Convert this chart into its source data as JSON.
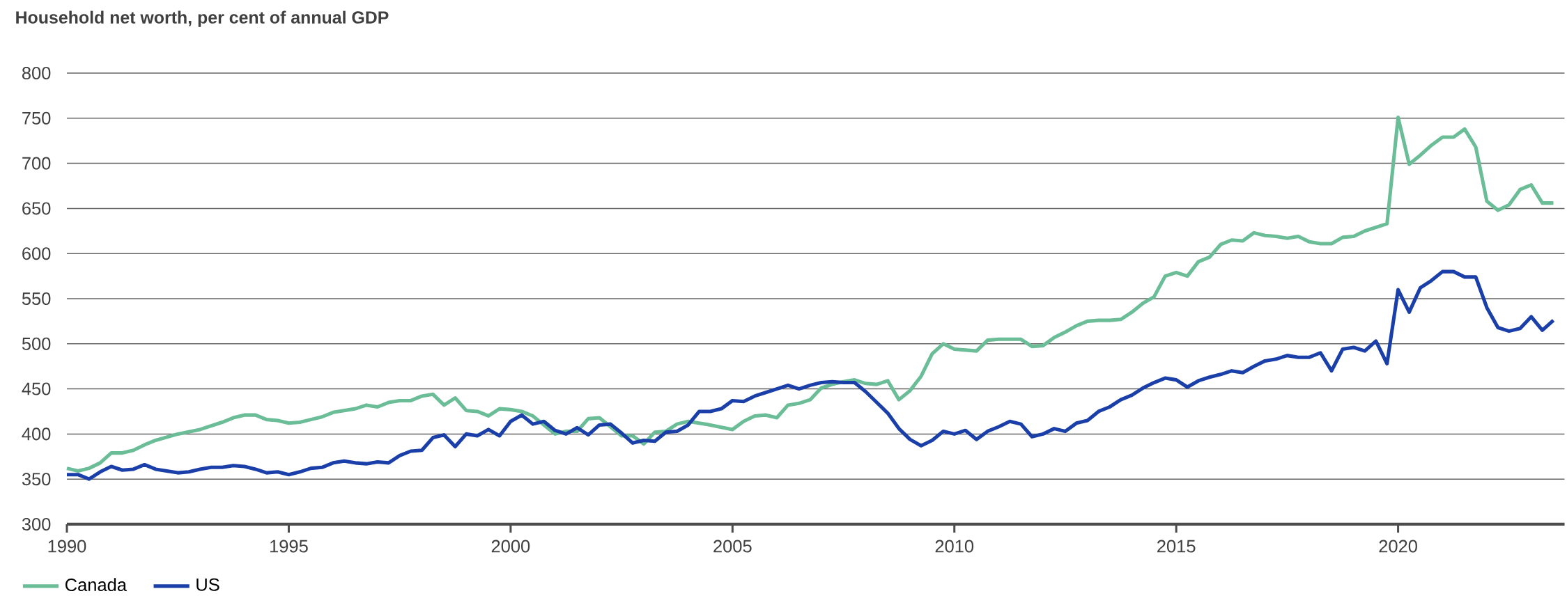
{
  "chart_data": {
    "type": "line",
    "title": "Household net worth, per cent of annual GDP",
    "xlim": [
      1990,
      2023.75
    ],
    "xticks": [
      1990,
      1995,
      2000,
      2005,
      2010,
      2015,
      2020
    ],
    "ylim": [
      300,
      800
    ],
    "yticks": [
      300,
      350,
      400,
      450,
      500,
      550,
      600,
      650,
      700,
      750,
      800
    ],
    "grid": "y",
    "legend": "bottom left",
    "series": [
      {
        "name": "Canada",
        "color": "#6bbd98",
        "x": [
          1990,
          1990.25,
          1990.5,
          1990.75,
          1991,
          1991.25,
          1991.5,
          1991.75,
          1992,
          1992.5,
          1993,
          1993.5,
          1993.75,
          1994,
          1994.25,
          1994.5,
          1994.75,
          1995,
          1995.25,
          1995.5,
          1995.75,
          1996,
          1996.5,
          1996.75,
          1997,
          1997.25,
          1997.5,
          1997.75,
          1998,
          1998.25,
          1998.5,
          1998.75,
          1999,
          1999.25,
          1999.5,
          1999.75,
          2000,
          2000.25,
          2000.5,
          2000.75,
          2001,
          2001.25,
          2001.5,
          2001.75,
          2002,
          2002.25,
          2002.5,
          2002.75,
          2003,
          2003.25,
          2003.5,
          2003.75,
          2004,
          2004.5,
          2005,
          2005.25,
          2005.5,
          2005.75,
          2006,
          2006.25,
          2006.5,
          2006.75,
          2007,
          2007.25,
          2007.5,
          2007.75,
          2008,
          2008.25,
          2008.5,
          2008.75,
          2009,
          2009.25,
          2009.5,
          2009.75,
          2010,
          2010.5,
          2010.75,
          2011,
          2011.25,
          2011.5,
          2011.75,
          2012,
          2012.25,
          2012.5,
          2012.75,
          2013,
          2013.25,
          2013.5,
          2013.75,
          2014,
          2014.25,
          2014.5,
          2014.75,
          2015,
          2015.25,
          2015.5,
          2015.75,
          2016,
          2016.25,
          2016.5,
          2016.75,
          2017,
          2017.25,
          2017.5,
          2017.75,
          2018,
          2018.25,
          2018.5,
          2018.75,
          2019,
          2019.25,
          2019.5,
          2019.75,
          2020,
          2020.25,
          2020.5,
          2020.75,
          2021,
          2021.25,
          2021.5,
          2021.75,
          2022,
          2022.25,
          2022.5,
          2022.75,
          2023,
          2023.25,
          2023.5
        ],
        "values": [
          362,
          359,
          362,
          368,
          379,
          379,
          382,
          388,
          393,
          400,
          405,
          413,
          418,
          421,
          421,
          416,
          415,
          412,
          413,
          416,
          419,
          424,
          428,
          432,
          430,
          435,
          437,
          437,
          442,
          444,
          432,
          440,
          426,
          425,
          420,
          428,
          427,
          425,
          420,
          410,
          400,
          403,
          403,
          417,
          418,
          408,
          398,
          398,
          389,
          402,
          403,
          411,
          414,
          410,
          405,
          414,
          420,
          421,
          418,
          432,
          434,
          438,
          451,
          455,
          458,
          460,
          456,
          455,
          459,
          438,
          448,
          464,
          489,
          500,
          494,
          492,
          504,
          505,
          505,
          505,
          497,
          498,
          507,
          513,
          520,
          525,
          526,
          526,
          527,
          535,
          545,
          552,
          575,
          579,
          575,
          591,
          596,
          610,
          615,
          614,
          623,
          620,
          619,
          617,
          619,
          613,
          611,
          611,
          618,
          619,
          625,
          629,
          633,
          751,
          699,
          709,
          720,
          729,
          729,
          738,
          718,
          658,
          648,
          654,
          671,
          676,
          656,
          656
        ]
      },
      {
        "name": "US",
        "color": "#1a3fa8",
        "x": [
          1990,
          1990.25,
          1990.5,
          1990.75,
          1991,
          1991.25,
          1991.5,
          1991.75,
          1992,
          1992.5,
          1992.75,
          1993,
          1993.25,
          1993.5,
          1993.75,
          1994,
          1994.25,
          1994.5,
          1994.75,
          1995,
          1995.25,
          1995.5,
          1995.75,
          1996,
          1996.25,
          1996.5,
          1996.75,
          1997,
          1997.25,
          1997.5,
          1997.75,
          1998,
          1998.25,
          1998.5,
          1998.75,
          1999,
          1999.25,
          1999.5,
          1999.75,
          2000,
          2000.25,
          2000.5,
          2000.75,
          2001,
          2001.25,
          2001.5,
          2001.75,
          2002,
          2002.25,
          2002.5,
          2002.75,
          2003,
          2003.25,
          2003.5,
          2003.75,
          2004,
          2004.25,
          2004.5,
          2004.75,
          2005,
          2005.25,
          2005.5,
          2005.75,
          2006,
          2006.25,
          2006.5,
          2006.75,
          2007,
          2007.25,
          2007.5,
          2007.75,
          2008,
          2008.25,
          2008.5,
          2008.75,
          2009,
          2009.25,
          2009.5,
          2009.75,
          2010,
          2010.25,
          2010.5,
          2010.75,
          2011,
          2011.25,
          2011.5,
          2011.75,
          2012,
          2012.25,
          2012.5,
          2012.75,
          2013,
          2013.25,
          2013.5,
          2013.75,
          2014,
          2014.25,
          2014.5,
          2014.75,
          2015,
          2015.25,
          2015.5,
          2015.75,
          2016,
          2016.25,
          2016.5,
          2016.75,
          2017,
          2017.25,
          2017.5,
          2017.75,
          2018,
          2018.25,
          2018.5,
          2018.75,
          2019,
          2019.25,
          2019.5,
          2019.75,
          2020,
          2020.25,
          2020.5,
          2020.75,
          2021,
          2021.25,
          2021.5,
          2021.75,
          2022,
          2022.25,
          2022.5,
          2022.75,
          2023,
          2023.25,
          2023.5
        ],
        "values": [
          355,
          355,
          350,
          358,
          364,
          360,
          361,
          366,
          361,
          357,
          358,
          361,
          363,
          363,
          365,
          364,
          361,
          357,
          358,
          355,
          358,
          362,
          363,
          368,
          370,
          368,
          367,
          369,
          368,
          376,
          381,
          382,
          396,
          399,
          386,
          400,
          398,
          405,
          398,
          414,
          421,
          411,
          414,
          404,
          400,
          407,
          399,
          410,
          411,
          401,
          390,
          393,
          392,
          402,
          403,
          410,
          425,
          425,
          428,
          437,
          436,
          442,
          446,
          450,
          454,
          450,
          454,
          457,
          458,
          457,
          457,
          447,
          435,
          423,
          406,
          394,
          387,
          393,
          403,
          400,
          404,
          394,
          403,
          408,
          414,
          411,
          397,
          400,
          406,
          403,
          412,
          415,
          425,
          430,
          438,
          443,
          451,
          457,
          462,
          460,
          452,
          459,
          463,
          466,
          470,
          468,
          475,
          481,
          483,
          487,
          485,
          485,
          490,
          470,
          494,
          496,
          492,
          503,
          478,
          560,
          535,
          562,
          570,
          580,
          580,
          574,
          574,
          540,
          518,
          514,
          517,
          530,
          515,
          526
        ]
      }
    ]
  }
}
